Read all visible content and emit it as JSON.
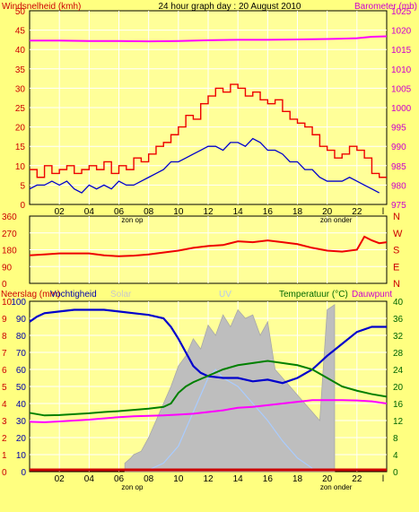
{
  "title": "24 hour graph day : 20 August 2010",
  "colors": {
    "background": "#ffff80",
    "plot_bg": "#ffff99",
    "grid": "#ffffff",
    "wind_gust": "#ee0000",
    "wind_avg": "#0000cc",
    "barometer": "#ff00ff",
    "direction": "#ee0000",
    "rain": "#cc0000",
    "humidity": "#0000cc",
    "solar": "#bebebe",
    "uv": "#aaccff",
    "temperature": "#008000",
    "dewpoint": "#ff00ff",
    "axis_red": "#cc0000",
    "axis_magenta": "#cc00cc",
    "axis_green": "#006600",
    "axis_blue": "#0000aa"
  },
  "x_axis": {
    "ticks": [
      "02",
      "04",
      "06",
      "08",
      "10",
      "12",
      "14",
      "16",
      "18",
      "20",
      "22",
      "l"
    ],
    "sunrise_label": "zon op",
    "sunset_label": "zon onder",
    "sunrise_hour": 6.9,
    "sunset_hour": 20.6
  },
  "chart_data": [
    {
      "type": "line",
      "panel": "wind-barometer",
      "x_range": [
        0,
        24
      ],
      "left_axis": {
        "label": "Windsnelheid (kmh)",
        "ticks": [
          "50",
          "45",
          "40",
          "35",
          "30",
          "25",
          "20",
          "15",
          "10",
          "5",
          "0"
        ],
        "range": [
          0,
          50
        ]
      },
      "right_axis": {
        "label": "Barometer (mb)",
        "ticks": [
          "1025",
          "1020",
          "1015",
          "1010",
          "1005",
          "1000",
          "995",
          "990",
          "985",
          "980",
          "975"
        ],
        "range": [
          975,
          1025
        ]
      },
      "series": [
        {
          "key": "gust",
          "axis": "left",
          "x": [
            0,
            0.5,
            1,
            1.5,
            2,
            2.5,
            3,
            3.5,
            4,
            4.5,
            5,
            5.5,
            6,
            6.5,
            7,
            7.5,
            8,
            8.5,
            9,
            9.5,
            10,
            10.5,
            11,
            11.5,
            12,
            12.5,
            13,
            13.5,
            14,
            14.5,
            15,
            15.5,
            16,
            16.5,
            17,
            17.5,
            18,
            18.5,
            19,
            19.5,
            20,
            20.5,
            21,
            21.5,
            22,
            22.5,
            23,
            23.5
          ],
          "y": [
            9,
            7,
            10,
            8,
            9,
            10,
            8,
            9,
            10,
            9,
            11,
            8,
            10,
            9,
            12,
            11,
            13,
            15,
            16,
            18,
            20,
            23,
            22,
            26,
            28,
            30,
            29,
            31,
            30,
            28,
            29,
            27,
            26,
            27,
            24,
            22,
            21,
            20,
            18,
            15,
            14,
            12,
            13,
            15,
            14,
            12,
            8,
            7
          ]
        },
        {
          "key": "average",
          "axis": "left",
          "x": [
            0,
            0.5,
            1,
            1.5,
            2,
            2.5,
            3,
            3.5,
            4,
            4.5,
            5,
            5.5,
            6,
            6.5,
            7,
            7.5,
            8,
            8.5,
            9,
            9.5,
            10,
            10.5,
            11,
            11.5,
            12,
            12.5,
            13,
            13.5,
            14,
            14.5,
            15,
            15.5,
            16,
            16.5,
            17,
            17.5,
            18,
            18.5,
            19,
            19.5,
            20,
            20.5,
            21,
            21.5,
            22,
            22.5,
            23,
            23.5
          ],
          "y": [
            4,
            5,
            5,
            6,
            5,
            6,
            4,
            3,
            5,
            4,
            5,
            4,
            6,
            5,
            5,
            6,
            7,
            8,
            9,
            11,
            11,
            12,
            13,
            14,
            15,
            15,
            14,
            16,
            16,
            15,
            17,
            16,
            14,
            14,
            13,
            11,
            11,
            9,
            9,
            7,
            6,
            6,
            6,
            7,
            6,
            5,
            4,
            3
          ]
        },
        {
          "key": "barometer",
          "axis": "right",
          "x": [
            0,
            2,
            4,
            6,
            8,
            10,
            12,
            14,
            16,
            18,
            20,
            22,
            23,
            24
          ],
          "y": [
            1017.3,
            1017.3,
            1017.2,
            1017.2,
            1017.1,
            1017.2,
            1017.4,
            1017.5,
            1017.5,
            1017.6,
            1017.7,
            1017.9,
            1018.3,
            1018.4
          ]
        }
      ]
    },
    {
      "type": "line",
      "panel": "wind-direction",
      "x_range": [
        0,
        24
      ],
      "left_axis": {
        "ticks": [
          "360",
          "270",
          "180",
          "90",
          "0"
        ],
        "range": [
          0,
          360
        ]
      },
      "right_axis": {
        "ticks": [
          "N",
          "W",
          "S",
          "E",
          "N"
        ]
      },
      "series": [
        {
          "key": "direction",
          "axis": "left",
          "x": [
            0,
            1,
            2,
            3,
            4,
            5,
            6,
            7,
            8,
            9,
            10,
            11,
            12,
            13,
            14,
            15,
            16,
            17,
            18,
            19,
            20,
            21,
            22,
            22.5,
            23,
            23.5,
            24
          ],
          "y": [
            150,
            155,
            160,
            160,
            160,
            150,
            145,
            148,
            155,
            165,
            175,
            190,
            200,
            205,
            225,
            220,
            230,
            220,
            210,
            190,
            175,
            170,
            180,
            250,
            230,
            215,
            220
          ]
        }
      ]
    },
    {
      "type": "line",
      "panel": "rain-humidity-solar-temperature",
      "x_range": [
        0,
        24
      ],
      "left_axis_rain": {
        "label": "Neerslag (mm)",
        "ticks": [
          "10",
          "9",
          "8",
          "7",
          "6",
          "5",
          "4",
          "3",
          "2",
          "1",
          "0"
        ],
        "range": [
          0,
          10
        ]
      },
      "left_axis_humidity": {
        "label": "Vochtigheid",
        "ticks": [
          "100",
          "90",
          "80",
          "70",
          "60",
          "50",
          "40",
          "30",
          "20",
          "10",
          "0"
        ],
        "range": [
          0,
          100
        ]
      },
      "solar_label": "Solar",
      "uv_label": "UV",
      "right_axis": {
        "label_temperature": "Temperatuur (°C)",
        "label_dewpoint": "Dauwpunt",
        "ticks": [
          "40",
          "36",
          "32",
          "28",
          "24",
          "20",
          "16",
          "12",
          "8",
          "4",
          "0"
        ],
        "range": [
          0,
          40
        ]
      },
      "series": [
        {
          "key": "humidity",
          "axis": "humidity",
          "x": [
            0,
            0.5,
            1,
            2,
            3,
            4,
            5,
            6,
            7,
            8,
            9,
            9.5,
            10,
            10.5,
            11,
            11.5,
            12,
            13,
            14,
            15,
            16,
            17,
            18,
            19,
            20,
            21,
            22,
            23,
            24
          ],
          "y": [
            88,
            91,
            93,
            94,
            95,
            95,
            95,
            94,
            93,
            92,
            90,
            85,
            78,
            70,
            62,
            58,
            56,
            55,
            55,
            53,
            54,
            52,
            55,
            60,
            68,
            75,
            82,
            85,
            85
          ]
        },
        {
          "key": "temperature",
          "axis": "right",
          "x": [
            0,
            1,
            2,
            3,
            4,
            5,
            6,
            7,
            8,
            9,
            9.5,
            10,
            10.5,
            11,
            12,
            13,
            14,
            15,
            16,
            17,
            18,
            19,
            20,
            21,
            22,
            23,
            24
          ],
          "y": [
            13.8,
            13.2,
            13.3,
            13.5,
            13.7,
            14.0,
            14.2,
            14.5,
            14.8,
            15.2,
            16,
            18.5,
            20,
            21,
            22.5,
            24,
            25,
            25.5,
            26,
            25.5,
            25,
            24,
            22,
            20,
            19,
            18.2,
            17.6
          ]
        },
        {
          "key": "dewpoint",
          "axis": "right",
          "x": [
            0,
            1,
            2,
            3,
            4,
            5,
            6,
            7,
            8,
            9,
            10,
            11,
            12,
            13,
            14,
            15,
            16,
            17,
            18,
            19,
            20,
            21,
            22,
            23,
            24
          ],
          "y": [
            11.7,
            11.6,
            11.8,
            12.0,
            12.2,
            12.5,
            12.8,
            13.0,
            13.1,
            13.2,
            13.4,
            13.6,
            14.0,
            14.4,
            15.0,
            15.2,
            15.6,
            16.0,
            16.4,
            16.8,
            16.8,
            16.8,
            16.7,
            16.5,
            16.0
          ]
        },
        {
          "key": "solar",
          "type": "area",
          "axis": "relative",
          "x": [
            6.4,
            6.8,
            7,
            7.5,
            8,
            8.5,
            9,
            9.5,
            10,
            10.5,
            11,
            11.5,
            12,
            12.5,
            13,
            13.5,
            14,
            14.5,
            15,
            15.5,
            16,
            16.5,
            17,
            17.5,
            18,
            18.5,
            19,
            19.5,
            20,
            20.5
          ],
          "y": [
            0.05,
            0.08,
            0.1,
            0.12,
            0.2,
            0.3,
            0.4,
            0.5,
            0.62,
            0.68,
            0.78,
            0.72,
            0.86,
            0.8,
            0.92,
            0.85,
            0.95,
            0.9,
            0.92,
            0.8,
            0.88,
            0.6,
            0.55,
            0.5,
            0.45,
            0.4,
            0.35,
            0.3,
            0.95,
            0.98
          ]
        },
        {
          "key": "uv",
          "axis": "relative",
          "x": [
            8,
            9,
            10,
            11,
            12,
            12.5,
            13,
            14,
            15,
            16,
            17,
            18,
            19
          ],
          "y": [
            0.01,
            0.05,
            0.15,
            0.35,
            0.55,
            0.6,
            0.55,
            0.5,
            0.4,
            0.3,
            0.18,
            0.08,
            0.02
          ]
        },
        {
          "key": "rain",
          "axis": "rain",
          "x": [
            0,
            24
          ],
          "y": [
            0,
            0
          ]
        }
      ]
    }
  ]
}
